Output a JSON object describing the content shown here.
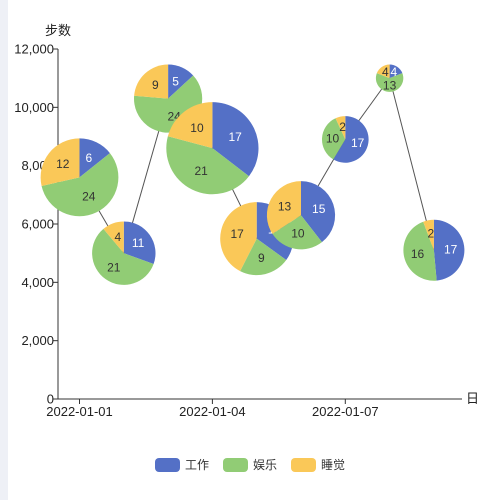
{
  "chart_data": {
    "type": "pie-scatter",
    "ylabel": "步数",
    "xlabel": "日",
    "ylim": [
      0,
      12000
    ],
    "yticks": [
      "0",
      "2,000",
      "4,000",
      "6,000",
      "8,000",
      "10,000",
      "12,000"
    ],
    "ytick_values": [
      0,
      2000,
      4000,
      6000,
      8000,
      10000,
      12000
    ],
    "xticks": [
      "2022-01-01",
      "2022-01-04",
      "2022-01-07"
    ],
    "xtick_days": [
      0,
      3,
      6
    ],
    "xlim_days": [
      0,
      9.5
    ],
    "grid": false,
    "legend_position": "bottom-center",
    "series_names": [
      "工作",
      "娱乐",
      "睡觉"
    ],
    "colors": [
      "#5470c6",
      "#91cc75",
      "#fac858"
    ],
    "points": [
      {
        "date": "2022-01-01",
        "steps": 7600,
        "values": [
          6,
          24,
          12
        ]
      },
      {
        "date": "2022-01-02",
        "steps": 5000,
        "values": [
          11,
          21,
          4
        ]
      },
      {
        "date": "2022-01-03",
        "steps": 10300,
        "values": [
          5,
          24,
          9
        ]
      },
      {
        "date": "2022-01-04",
        "steps": 8600,
        "values": [
          17,
          21,
          10
        ]
      },
      {
        "date": "2022-01-05",
        "steps": 5500,
        "values": [
          14,
          9,
          17
        ]
      },
      {
        "date": "2022-01-06",
        "steps": 6300,
        "values": [
          15,
          10,
          13
        ]
      },
      {
        "date": "2022-01-07",
        "steps": 8900,
        "values": [
          17,
          10,
          2
        ]
      },
      {
        "date": "2022-01-08",
        "steps": 11000,
        "values": [
          4,
          13,
          4
        ]
      },
      {
        "date": "2022-01-09",
        "steps": 5100,
        "values": [
          17,
          16,
          2
        ]
      }
    ]
  }
}
